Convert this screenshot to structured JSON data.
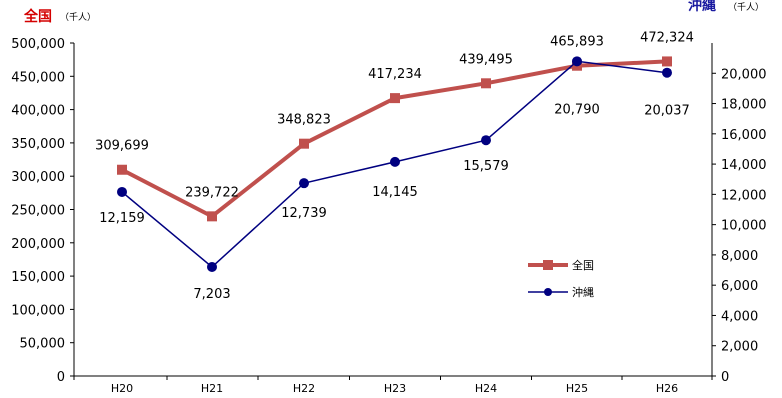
{
  "chart_data": {
    "type": "line",
    "categories": [
      "H20",
      "H21",
      "H22",
      "H23",
      "H24",
      "H25",
      "H26"
    ],
    "left_axis": {
      "title": "全国",
      "unit": "（千人）",
      "ylim": [
        0,
        500000
      ],
      "ticks": [
        "0",
        "50,000",
        "100,000",
        "150,000",
        "200,000",
        "250,000",
        "300,000",
        "350,000",
        "400,000",
        "450,000",
        "500,000"
      ],
      "color": "#d40000"
    },
    "right_axis": {
      "title": "沖縄",
      "unit": "（千人）",
      "ylim": [
        0,
        22000
      ],
      "ticks": [
        "0",
        "2,000",
        "4,000",
        "6,000",
        "8,000",
        "10,000",
        "12,000",
        "14,000",
        "16,000",
        "18,000",
        "20,000"
      ],
      "color": "#1a1aa0"
    },
    "series": [
      {
        "name": "全国",
        "axis": "left",
        "color": "#c0504d",
        "values": [
          309699,
          239722,
          348823,
          417234,
          439495,
          465893,
          472324
        ],
        "labels": [
          "309,699",
          "239,722",
          "348,823",
          "417,234",
          "439,495",
          "465,893",
          "472,324"
        ]
      },
      {
        "name": "沖縄",
        "axis": "right",
        "color": "#000080",
        "values": [
          12159,
          7203,
          12739,
          14145,
          15579,
          20790,
          20037
        ],
        "labels": [
          "12,159",
          "7,203",
          "12,739",
          "14,145",
          "15,579",
          "20,790",
          "20,037"
        ]
      }
    ],
    "legend_position": "right-middle"
  }
}
